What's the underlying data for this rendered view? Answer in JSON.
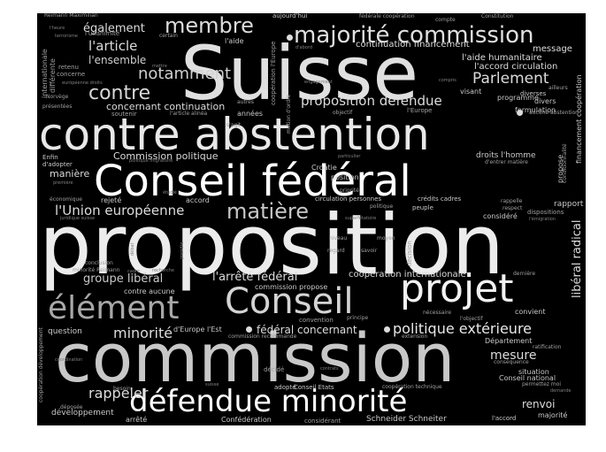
{
  "background": "#000000",
  "text_colors": [
    "#ffffff",
    "#e6e6e6",
    "#c8c8c8",
    "#a0a0a0",
    "#808080"
  ],
  "words": [
    "Suisse",
    "proposition",
    "commission",
    "contre abstention",
    "Conseil fédéral",
    "majorité commission",
    "membre",
    "élément",
    "Conseil",
    "projet",
    "défendue minorité",
    "notamment",
    "contre",
    "Parlement",
    "matière",
    "l'Union européenne",
    "proposition défendue",
    "l'article",
    "également",
    "l'ensemble",
    "politique extérieure",
    "rappeler",
    "minorité",
    "groupe libéral",
    "l'arrêté fédéral",
    "mesure",
    "renvoi",
    "libéral radical",
    "fédéral concernant",
    "concernant continuation",
    "Commission politique",
    "manière",
    "continuation financement",
    "l'aide humanitaire",
    "l'accord circulation",
    "message",
    "coopération internationale",
    "Schneider Schneiter",
    "développement",
    "question",
    "arrêté",
    "Confédération",
    "considérant",
    "l'accord",
    "majorité",
    "Conseil national",
    "situation",
    "conséquence",
    "Département",
    "ratification",
    "convient",
    "nécessaire",
    "l'objectif",
    "principe",
    "convention",
    "commission propose",
    "contre aucune",
    "conclusion",
    "minorité Reimann",
    "d'Europe l'Est",
    "commission recommande",
    "extension",
    "décidé",
    "contrats",
    "adopté",
    "Conseil Etats",
    "coopération technique",
    "besoin",
    "déposée",
    "suisse",
    "coordination",
    "rapport",
    "dispositions",
    "l'émigration",
    "considéré",
    "crédits cadres",
    "peuple",
    "politique",
    "circulation personnes",
    "rappelle",
    "respect",
    "priorité",
    "position",
    "Croatie",
    "particulier",
    "droits l'homme",
    "d'entrer matière",
    "propose",
    "financement coopération",
    "conditionnalité",
    "diverses",
    "formulation",
    "aucune abstention",
    "programme",
    "visant",
    "ailleurs",
    "divers",
    "objectif",
    "l'Europe",
    "l'article alinéa",
    "années",
    "soutenir",
    "s'agit",
    "motion d'ordre",
    "autres",
    "engagement",
    "compris",
    "présentées",
    "Norvège",
    "concerne",
    "européenne droits",
    "retenu",
    "mettre",
    "certain",
    "terrorisme",
    "l'unanimité",
    "l'heure",
    "Reimann Maximilian",
    "aujourd'hui",
    "fédérale coopération",
    "compte",
    "Constitution",
    "d'abord",
    "coopération l'Europe",
    "internationale",
    "différente",
    "l'aide",
    "Enfin",
    "d'adopter",
    "politique migratoire",
    "première",
    "économique",
    "étudié",
    "rejeté",
    "accord",
    "juridique suisse",
    "superfétatoire",
    "niveau",
    "moyen",
    "regard",
    "savoir",
    "décision",
    "débat",
    "cadre",
    "recherche",
    "prendre",
    "dernière",
    "demande",
    "permettez moi",
    "coopération développement"
  ]
}
